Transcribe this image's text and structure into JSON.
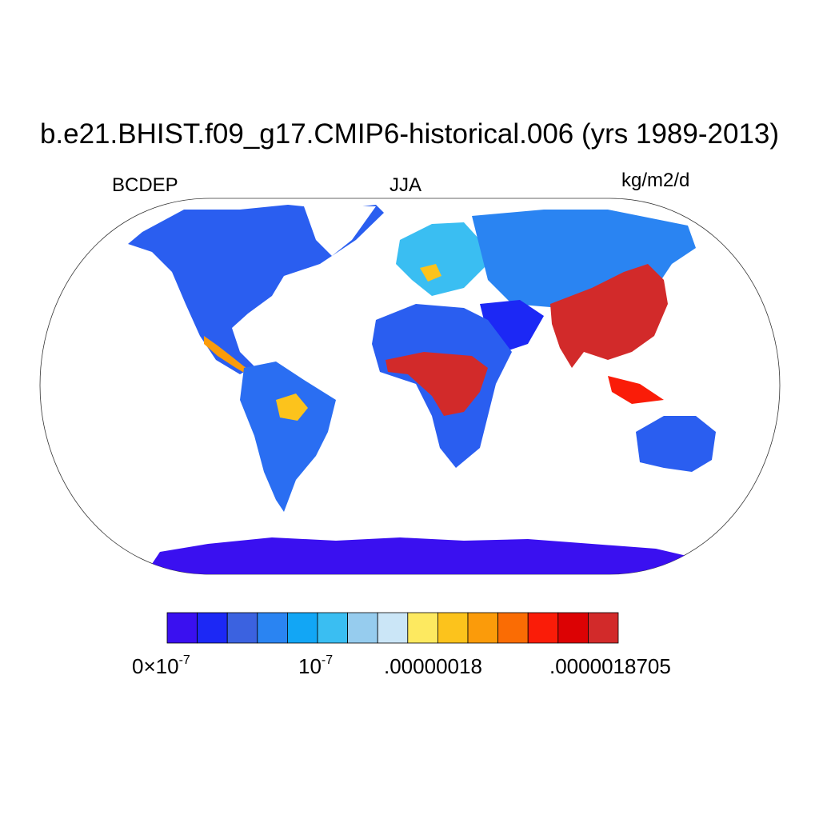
{
  "title": "b.e21.BHIST.f09_g17.CMIP6-historical.006 (yrs 1989-2013)",
  "variable": "BCDEP",
  "season": "JJA",
  "units": "kg/m2/d",
  "colorbar": {
    "colors": [
      "#3a10f0",
      "#1c28f5",
      "#3b62e0",
      "#2a84f2",
      "#12a6f5",
      "#3abef2",
      "#96ccee",
      "#cbe6f7",
      "#fde960",
      "#fcc31c",
      "#fb9b0a",
      "#fa6c04",
      "#fa1c08",
      "#dc0204",
      "#d22a2a"
    ],
    "label_min_mantissa": "0",
    "label_min_times": "×",
    "label_min_base": "10",
    "label_min_exp": "-7",
    "label_2_base": "10",
    "label_2_exp": "-7",
    "label_3": ".00000018",
    "label_4": ".0000018705"
  },
  "map": {
    "projection": "Robinson",
    "ocean_color": "#ffffff",
    "land_low_color": "#3a10f0",
    "land_high_color": "#d22a2a"
  }
}
